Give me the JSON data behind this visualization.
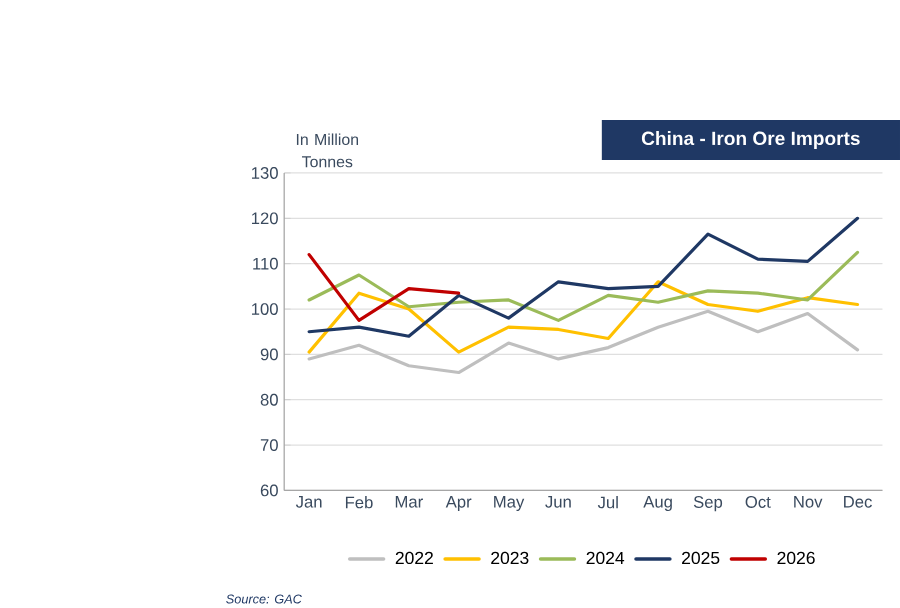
{
  "chart_data": {
    "type": "line",
    "title": "China - Iron Ore Imports",
    "ylabel": "In Million Tonnes",
    "categories": [
      "Jan",
      "Feb",
      "Mar",
      "Apr",
      "May",
      "Jun",
      "Jul",
      "Aug",
      "Sep",
      "Oct",
      "Nov",
      "Dec"
    ],
    "series": [
      {
        "name": "2022",
        "color": "#bfbfbf",
        "values": [
          89,
          92,
          87.5,
          86,
          92.5,
          89,
          91.5,
          96,
          99.5,
          95,
          99,
          91
        ]
      },
      {
        "name": "2023",
        "color": "#ffc000",
        "values": [
          90.5,
          103.5,
          100,
          90.5,
          96,
          95.5,
          93.5,
          106,
          101,
          99.5,
          102.5,
          101
        ]
      },
      {
        "name": "2024",
        "color": "#9bbb59",
        "values": [
          102,
          107.5,
          100.5,
          101.5,
          102,
          97.5,
          103,
          101.5,
          104,
          103.5,
          102,
          112.5
        ]
      },
      {
        "name": "2025",
        "color": "#1f3864",
        "values": [
          95,
          96,
          94,
          103,
          98,
          106,
          104.5,
          105,
          116.5,
          111,
          110.5,
          120
        ]
      },
      {
        "name": "2026",
        "color": "#c00000",
        "values": [
          112,
          97.5,
          104.5,
          103.5,
          null,
          null,
          null,
          null,
          null,
          null,
          null,
          null
        ]
      }
    ],
    "ylim": [
      60,
      130
    ],
    "yticks": [
      60,
      70,
      80,
      90,
      100,
      110,
      120,
      130
    ],
    "grid": "y",
    "legend": "bottom",
    "annotations": [
      "Source: GAC"
    ]
  }
}
